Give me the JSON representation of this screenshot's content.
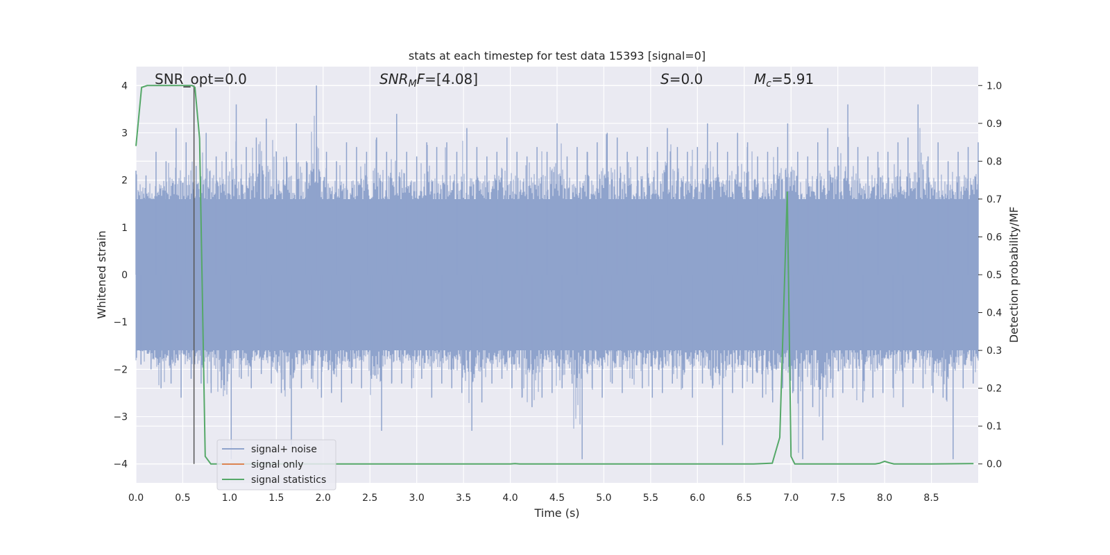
{
  "chart_data": {
    "type": "line",
    "title": "stats at each timestep for test data 15393 [signal=0]",
    "xlabel": "Time (s)",
    "ylabel_left": "Whitened strain",
    "ylabel_right": "Detection probability/MF",
    "xlim": [
      0.0,
      9.0
    ],
    "ylim_left": [
      -4.4,
      4.4
    ],
    "ylim_right": [
      -0.05,
      1.05
    ],
    "x_ticks": [
      "0.0",
      "0.5",
      "1.0",
      "1.5",
      "2.0",
      "2.5",
      "3.0",
      "3.5",
      "4.0",
      "4.5",
      "5.0",
      "5.5",
      "6.0",
      "6.5",
      "7.0",
      "7.5",
      "8.0",
      "8.5"
    ],
    "x_tick_values": [
      0.0,
      0.5,
      1.0,
      1.5,
      2.0,
      2.5,
      3.0,
      3.5,
      4.0,
      4.5,
      5.0,
      5.5,
      6.0,
      6.5,
      7.0,
      7.5,
      8.0,
      8.5
    ],
    "y_left_ticks": [
      "4",
      "3",
      "2",
      "1",
      "0",
      "−1",
      "−2",
      "−3",
      "−4"
    ],
    "y_left_tick_values": [
      4,
      3,
      2,
      1,
      0,
      -1,
      -2,
      -3,
      -4
    ],
    "y_right_ticks": [
      "1.0",
      "0.9",
      "0.8",
      "0.7",
      "0.6",
      "0.5",
      "0.4",
      "0.3",
      "0.2",
      "0.1",
      "0.0"
    ],
    "y_right_tick_values": [
      1.0,
      0.9,
      0.8,
      0.7,
      0.6,
      0.5,
      0.4,
      0.3,
      0.2,
      0.1,
      0.0
    ],
    "grid": true,
    "legend_placement": "lower-left",
    "annotations": {
      "snr_opt": "SNR_opt=0.0",
      "snr_mf_sym": "SNR",
      "snr_mf_sub": "M",
      "snr_mf_sym2": "F",
      "snr_mf_val": "=[4.08]",
      "s_sym": "S",
      "s_val": "=0.0",
      "mc_sym": "M",
      "mc_sub": "c",
      "mc_val": "=5.91"
    },
    "marker_line_x": 0.62,
    "series": [
      {
        "name": "signal+ noise",
        "color": "#8fa3cc",
        "axis": "left",
        "description_values": "whitened noise strain, amplitude roughly within [-4, 4]",
        "envelope_upper": [
          2.2,
          2.1,
          2.6,
          2.4,
          3.1,
          2.8,
          2.3,
          3.0,
          2.5,
          2.6,
          3.6,
          2.7,
          2.9,
          3.3,
          2.6,
          2.5,
          3.2,
          2.4,
          4.0,
          2.6,
          2.4,
          2.8,
          2.7,
          2.6,
          2.9,
          2.6,
          3.4,
          2.6,
          2.5,
          2.8,
          2.7,
          2.8,
          2.6,
          3.1,
          2.7,
          2.5,
          2.6,
          2.9,
          2.6,
          2.5,
          2.7,
          2.6,
          3.2,
          2.5,
          2.7,
          2.6,
          2.8,
          3.0,
          2.9,
          2.6,
          2.5,
          2.7,
          2.6,
          3.1,
          2.7,
          2.6,
          2.7,
          3.2,
          2.8,
          2.6,
          3.0,
          2.8,
          2.5,
          2.6,
          2.7,
          3.2,
          2.6,
          2.5,
          2.8,
          3.1,
          2.7,
          3.6,
          2.7,
          2.5,
          2.6,
          2.6,
          2.8,
          2.9,
          3.6,
          2.5,
          2.8,
          2.4,
          2.6,
          2.7,
          2.8
        ],
        "envelope_lower": [
          -1.9,
          -2.0,
          -2.4,
          -2.3,
          -2.6,
          -2.2,
          -2.3,
          -2.5,
          -2.4,
          -3.9,
          -2.2,
          -2.4,
          -2.1,
          -2.3,
          -2.5,
          -3.6,
          -2.4,
          -2.2,
          -2.6,
          -2.5,
          -2.7,
          -2.3,
          -2.4,
          -2.2,
          -3.3,
          -2.3,
          -2.3,
          -2.4,
          -2.2,
          -2.6,
          -2.3,
          -2.4,
          -2.5,
          -3.3,
          -2.7,
          -2.3,
          -2.2,
          -2.4,
          -2.6,
          -2.8,
          -2.6,
          -2.5,
          -2.4,
          -2.3,
          -3.9,
          -2.4,
          -2.6,
          -2.3,
          -2.5,
          -2.2,
          -2.4,
          -2.6,
          -2.5,
          -2.3,
          -2.4,
          -2.6,
          -2.3,
          -2.4,
          -3.6,
          -2.5,
          -2.4,
          -2.3,
          -2.6,
          -2.7,
          -2.4,
          -2.5,
          -3.9,
          -2.8,
          -3.5,
          -2.6,
          -2.5,
          -2.4,
          -2.7,
          -2.6,
          -2.5,
          -2.4,
          -2.8,
          -2.3,
          -2.4,
          -2.5,
          -2.6,
          -3.9,
          -2.4,
          -2.3,
          -2.2
        ]
      },
      {
        "name": "signal only",
        "color": "#dd8452",
        "axis": "left",
        "x": [],
        "values": []
      },
      {
        "name": "signal statistics",
        "color": "#55a868",
        "axis": "right",
        "x": [
          0.0,
          0.06,
          0.12,
          0.2,
          0.3,
          0.4,
          0.5,
          0.6,
          0.63,
          0.68,
          0.74,
          0.8,
          1.0,
          2.0,
          3.0,
          4.0,
          4.05,
          4.1,
          5.0,
          6.0,
          6.6,
          6.8,
          6.88,
          6.96,
          7.0,
          7.04,
          7.1,
          7.5,
          7.9,
          7.95,
          8.0,
          8.05,
          8.1,
          8.5,
          8.95
        ],
        "values": [
          0.84,
          0.995,
          1.0,
          1.0,
          1.0,
          1.0,
          1.0,
          1.0,
          0.995,
          0.86,
          0.02,
          0.0,
          0.0,
          0.0,
          0.0,
          0.0,
          0.001,
          0.0,
          0.0,
          0.0,
          0.0,
          0.002,
          0.07,
          0.72,
          0.02,
          0.0,
          0.0,
          0.0,
          0.0,
          0.002,
          0.007,
          0.003,
          0.0,
          0.0,
          0.001
        ]
      }
    ]
  }
}
